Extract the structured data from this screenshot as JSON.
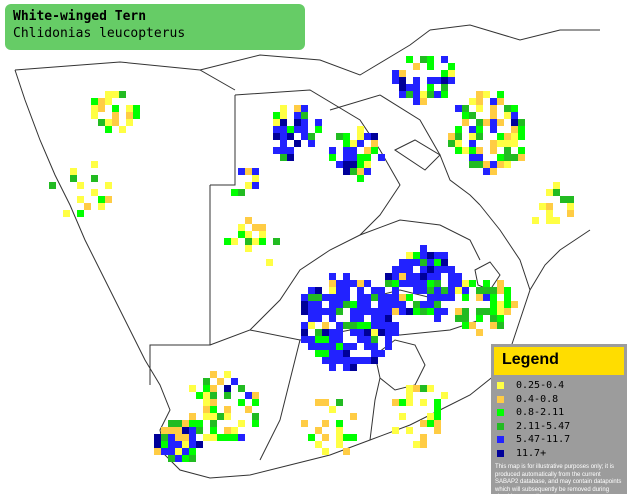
{
  "title": {
    "common_name": "White-winged Tern",
    "scientific_name": "Chlidonias leucopterus"
  },
  "legend": {
    "heading": "Legend",
    "items": [
      {
        "label": "0.25-0.4",
        "color": "#ffff44"
      },
      {
        "label": "0.4-0.8",
        "color": "#ffcc44"
      },
      {
        "label": "0.8-2.11",
        "color": "#00ff00"
      },
      {
        "label": "2.11-5.47",
        "color": "#22bb22"
      },
      {
        "label": "5.47-11.7",
        "color": "#2222ff"
      },
      {
        "label": "11.7+",
        "color": "#000099"
      }
    ],
    "disclaimer": "This map is for illustrative purposes only; it is produced automatically from the current SABAP2 database, and may contain datapoints which will subsequently be removed during checking operations."
  },
  "colors": {
    "title_bg": "#66cc66",
    "legend_bg": "#9c9c9c",
    "legend_header_bg": "#ffdd00",
    "border_line": "#333333"
  }
}
